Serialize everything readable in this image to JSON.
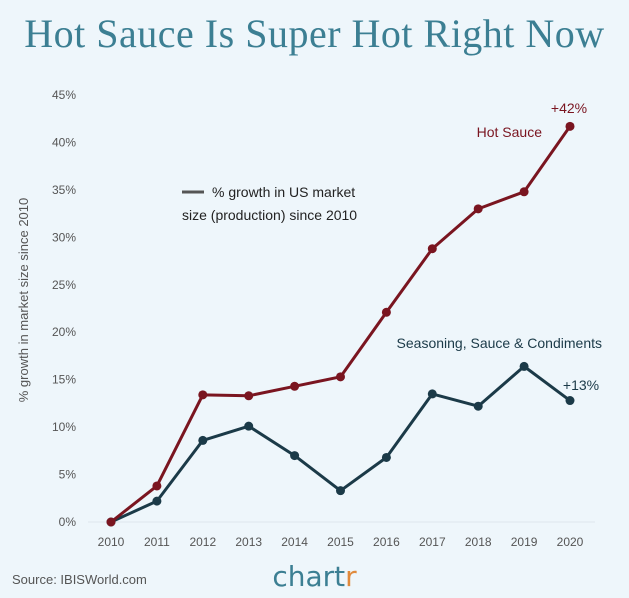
{
  "title": "Hot Sauce Is Super Hot Right Now",
  "source": "Source: IBISWorld.com",
  "brand": {
    "main": "chart",
    "accent": "r"
  },
  "colors": {
    "hot_sauce": "#7a1520",
    "seasoning": "#1b3a48",
    "title": "#3c7f93",
    "brand_accent": "#e08a3c"
  },
  "chart_data": {
    "type": "line",
    "ylabel": "% growth in market size since 2010",
    "ylim": [
      0,
      45
    ],
    "yticks": [
      "0%",
      "5%",
      "10%",
      "15%",
      "20%",
      "25%",
      "30%",
      "35%",
      "40%",
      "45%"
    ],
    "x": [
      "2010",
      "2011",
      "2012",
      "2013",
      "2014",
      "2015",
      "2016",
      "2017",
      "2018",
      "2019",
      "2020"
    ],
    "legend": {
      "line1": "% growth in US market",
      "line2": "size (production) since 2010"
    },
    "series": [
      {
        "name": "Hot Sauce",
        "end_label": "+42%",
        "values": [
          0,
          3.8,
          13.4,
          13.3,
          14.3,
          15.3,
          22.1,
          28.8,
          33.0,
          34.8,
          41.7
        ]
      },
      {
        "name": "Seasoning, Sauce & Condiments",
        "end_label": "+13%",
        "values": [
          0,
          2.2,
          8.6,
          10.1,
          7.0,
          3.3,
          6.8,
          13.5,
          12.2,
          16.4,
          12.8
        ]
      }
    ]
  }
}
